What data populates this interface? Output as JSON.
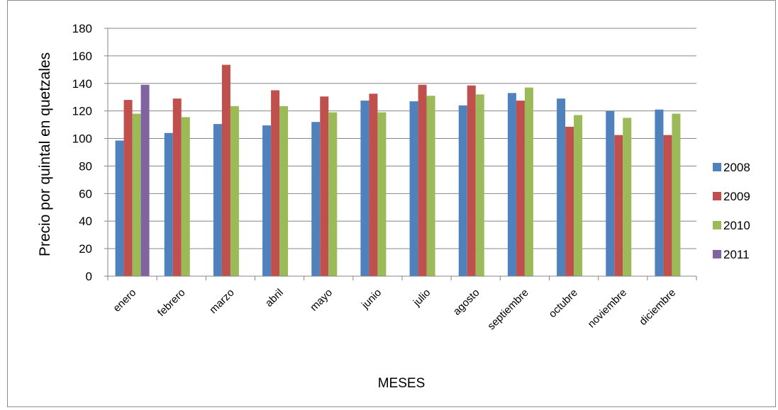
{
  "chart_data": {
    "type": "bar",
    "title": "",
    "xlabel": "MESES",
    "ylabel": "Precio por quintal en quetzales",
    "ylim": [
      0,
      180
    ],
    "yticks": [
      0,
      20,
      40,
      60,
      80,
      100,
      120,
      140,
      160,
      180
    ],
    "grid": true,
    "legend_position": "right",
    "categories": [
      "enero",
      "febrero",
      "marzo",
      "abril",
      "mayo",
      "junio",
      "julio",
      "agosto",
      "septiembre",
      "octubre",
      "noviembre",
      "diciembre"
    ],
    "series": [
      {
        "name": "2008",
        "color": "#4f81bd",
        "values": [
          98.5,
          104,
          110.5,
          109.5,
          112,
          127.5,
          127,
          124,
          133,
          129,
          120,
          121
        ]
      },
      {
        "name": "2009",
        "color": "#c0504d",
        "values": [
          128,
          129,
          153.5,
          135,
          130.5,
          132.5,
          139,
          138.5,
          127.5,
          108.5,
          102.5,
          102.5
        ]
      },
      {
        "name": "2010",
        "color": "#9bbb59",
        "values": [
          118,
          115.5,
          123.5,
          123.5,
          119,
          119,
          131,
          132,
          137,
          117,
          115,
          118
        ]
      },
      {
        "name": "2011",
        "color": "#8064a2",
        "values": [
          139,
          null,
          null,
          null,
          null,
          null,
          null,
          null,
          null,
          null,
          null,
          null
        ]
      }
    ]
  }
}
